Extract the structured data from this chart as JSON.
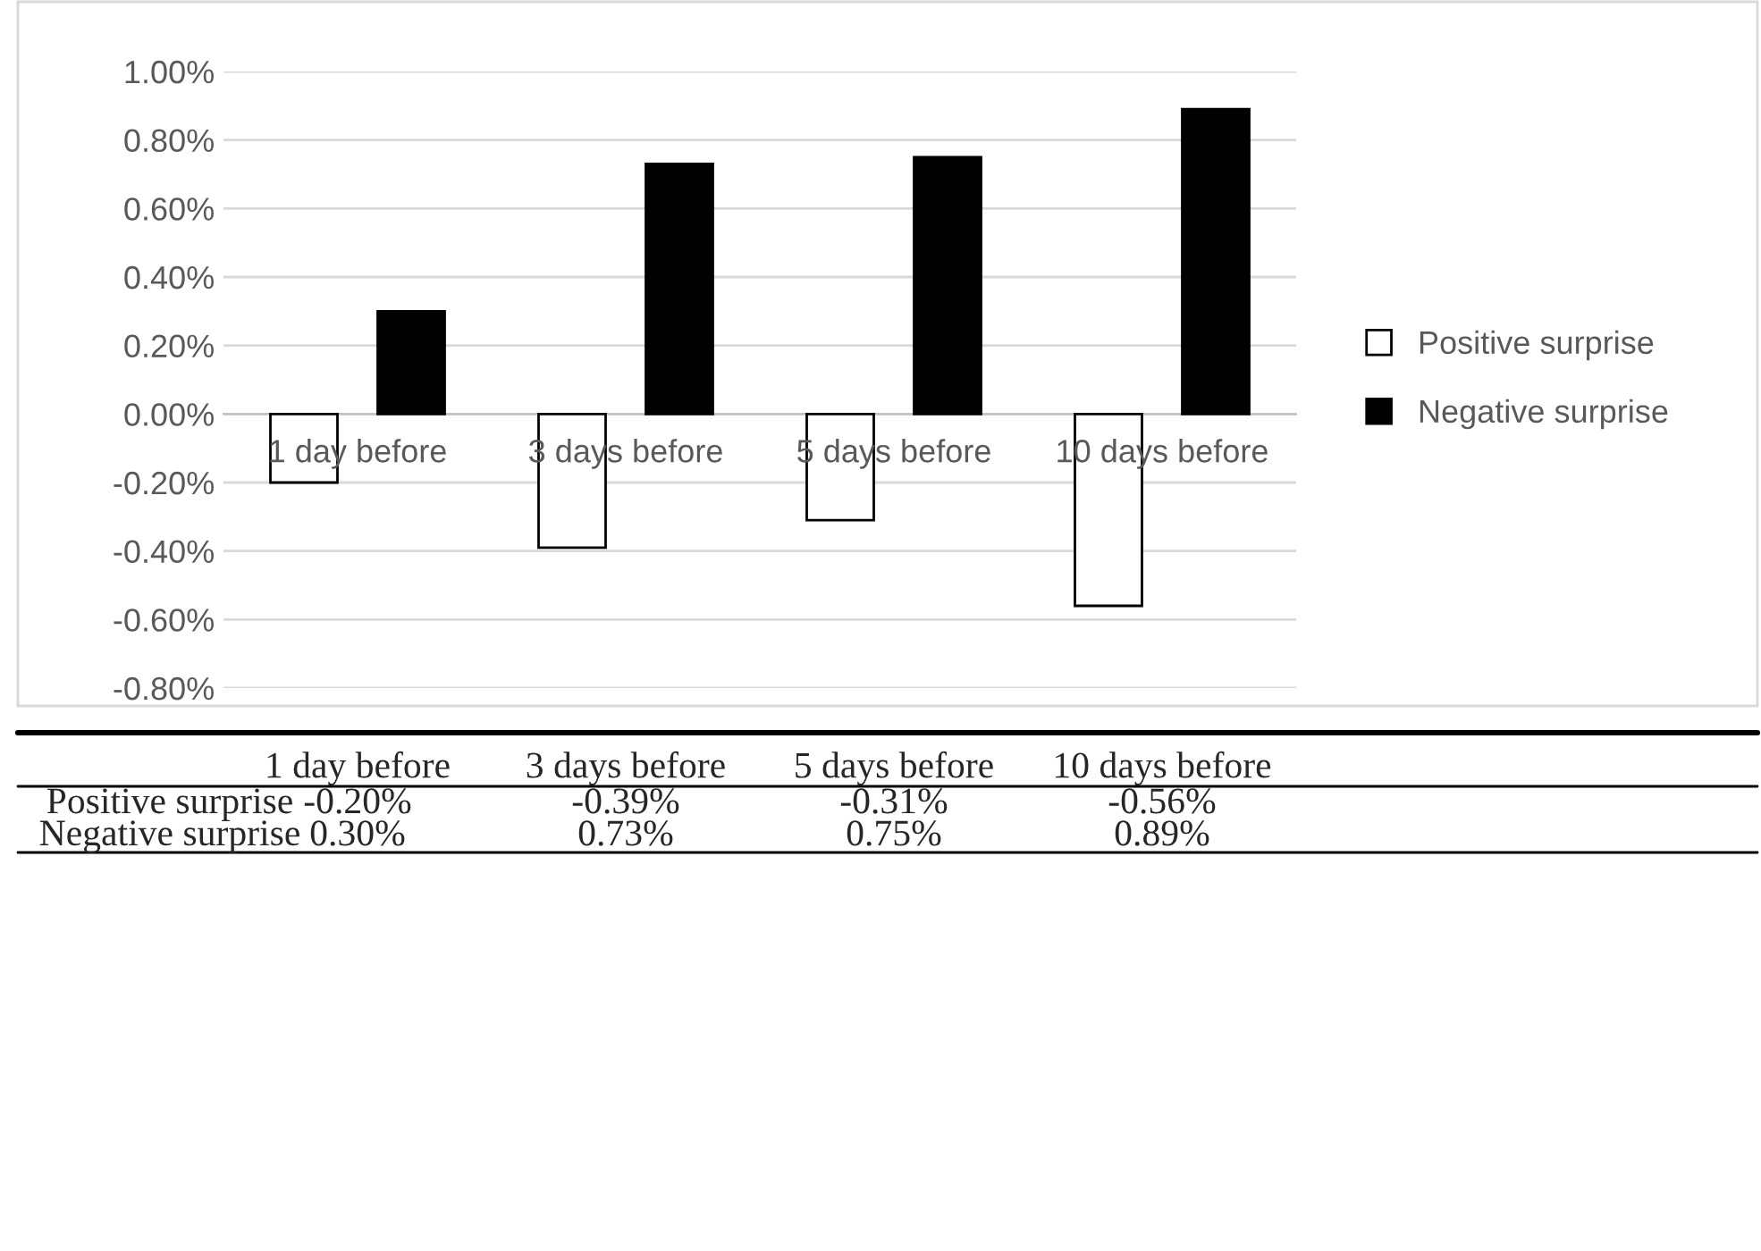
{
  "chart_data": {
    "type": "bar",
    "categories": [
      "1 day before",
      "3 days before",
      "5 days before",
      "10 days before"
    ],
    "series": [
      {
        "name": "Positive surprise",
        "color": "#ffffff",
        "values": [
          -0.2,
          -0.39,
          -0.31,
          -0.56
        ],
        "value_labels": [
          "-0.20%",
          "-0.39%",
          "-0.31%",
          "-0.56%"
        ]
      },
      {
        "name": "Negative surprise",
        "color": "#000000",
        "values": [
          0.3,
          0.73,
          0.75,
          0.89
        ],
        "value_labels": [
          "0.30%",
          "0.73%",
          "0.75%",
          "0.89%"
        ]
      }
    ],
    "ylim": [
      -0.8,
      1.0
    ],
    "yticks": [
      {
        "value": -0.8,
        "label": "-0.80%"
      },
      {
        "value": -0.6,
        "label": "-0.60%"
      },
      {
        "value": -0.4,
        "label": "-0.40%"
      },
      {
        "value": -0.2,
        "label": "-0.20%"
      },
      {
        "value": 0,
        "label": "0.00%"
      },
      {
        "value": 0.2,
        "label": "0.20%"
      },
      {
        "value": 0.4,
        "label": "0.40%"
      },
      {
        "value": 0.6,
        "label": "0.60%"
      },
      {
        "value": 0.8,
        "label": "0.80%"
      },
      {
        "value": 1.0,
        "label": "1.00%"
      }
    ],
    "grid": "y",
    "legend": "right"
  }
}
